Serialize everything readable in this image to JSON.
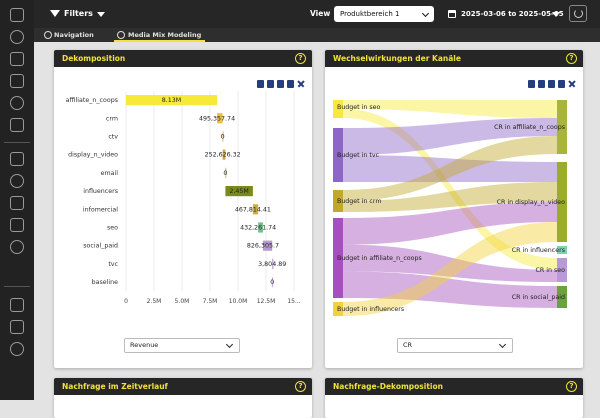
{
  "toolbar": {
    "filters_label": "Filters",
    "view_label": "View",
    "view_value": "Produktbereich 1",
    "date_range": "2025-03-06 to 2025-05-05"
  },
  "tabs": [
    {
      "label": "Navigation",
      "active": false
    },
    {
      "label": "Media Mix Modeling",
      "active": true
    }
  ],
  "sidebar_icons": [
    "dashboard-icon",
    "location-icon",
    "target-icon",
    "target-alt-icon",
    "search-chart-icon",
    "trend-icon",
    "search-icon",
    "globe-icon",
    "calculator-icon",
    "goal-icon",
    "briefcase-icon",
    "wrench-icon",
    "users-icon",
    "play-icon"
  ],
  "accent_color": "#f2e23a",
  "cards": {
    "decomposition": {
      "title": "Dekomposition",
      "dropdown_value": "Revenue",
      "tool_icons": [
        "image-icon",
        "document-icon",
        "spreadsheet-icon",
        "print-icon",
        "expand-icon"
      ]
    },
    "interactions": {
      "title": "Wechselwirkungen der Kanäle",
      "dropdown_value": "CR",
      "tool_icons": [
        "image-icon",
        "document-icon",
        "spreadsheet-icon",
        "print-icon",
        "expand-icon"
      ]
    },
    "demand_timeline": {
      "title": "Nachfrage im Zeitverlauf"
    },
    "demand_decomposition": {
      "title": "Nachfrage-Dekomposition"
    }
  },
  "chart_data": [
    {
      "type": "bar",
      "subtype": "waterfall",
      "categories": [
        "affiliate_n_coops",
        "crm",
        "ctv",
        "display_n_video",
        "email",
        "influencers",
        "infomercial",
        "seo",
        "social_paid",
        "tvc",
        "baseline"
      ],
      "values": [
        8130000,
        495357.74,
        0,
        252626.32,
        0,
        2450000,
        467814.41,
        432261.74,
        826305.7,
        3804.89,
        0
      ],
      "data_labels": [
        "8.13M",
        "495,357.74",
        "0",
        "252,626.32",
        "0",
        "2.45M",
        "467,814.41",
        "432,261.74",
        "826,305.7",
        "3,804.89",
        "0"
      ],
      "colors": [
        "#f7e93a",
        "#e8c23a",
        "#d9a544",
        "#d9a544",
        "#cc9945",
        "#7a8a1a",
        "#c7b23a",
        "#72c18c",
        "#b79ad1",
        "#b79ad1",
        "#b79ad1"
      ],
      "xticks": [
        "0",
        "2.5M",
        "5.0M",
        "7.5M",
        "10.0M",
        "12.5M",
        "15..."
      ],
      "xlim": [
        0,
        15000000
      ],
      "grid": true,
      "orientation": "horizontal"
    },
    {
      "type": "sankey",
      "sources": [
        {
          "name": "Budget in seo",
          "color": "#f7e93a"
        },
        {
          "name": "Budget in tvc",
          "color": "#8e66c7"
        },
        {
          "name": "Budget in crm",
          "color": "#c2a92a"
        },
        {
          "name": "Budget in affiliate_n_coops",
          "color": "#a64fbf"
        },
        {
          "name": "Budget in influencers",
          "color": "#f2d23a"
        }
      ],
      "targets": [
        {
          "name": "CR in affiliate_n_coops",
          "color": "#a8b43a"
        },
        {
          "name": "CR in display_n_video",
          "color": "#9bab2a"
        },
        {
          "name": "CR in influencers",
          "color": "#7fd1b0"
        },
        {
          "name": "CR in seo",
          "color": "#b99ad8"
        },
        {
          "name": "CR in social_paid",
          "color": "#6aa33a"
        }
      ],
      "links": [
        {
          "source": "Budget in seo",
          "target": "CR in affiliate_n_coops"
        },
        {
          "source": "Budget in seo",
          "target": "CR in seo"
        },
        {
          "source": "Budget in tvc",
          "target": "CR in affiliate_n_coops"
        },
        {
          "source": "Budget in tvc",
          "target": "CR in display_n_video"
        },
        {
          "source": "Budget in crm",
          "target": "CR in affiliate_n_coops"
        },
        {
          "source": "Budget in crm",
          "target": "CR in display_n_video"
        },
        {
          "source": "Budget in affiliate_n_coops",
          "target": "CR in display_n_video"
        },
        {
          "source": "Budget in affiliate_n_coops",
          "target": "CR in seo"
        },
        {
          "source": "Budget in affiliate_n_coops",
          "target": "CR in social_paid"
        },
        {
          "source": "Budget in influencers",
          "target": "CR in display_n_video"
        }
      ]
    }
  ]
}
